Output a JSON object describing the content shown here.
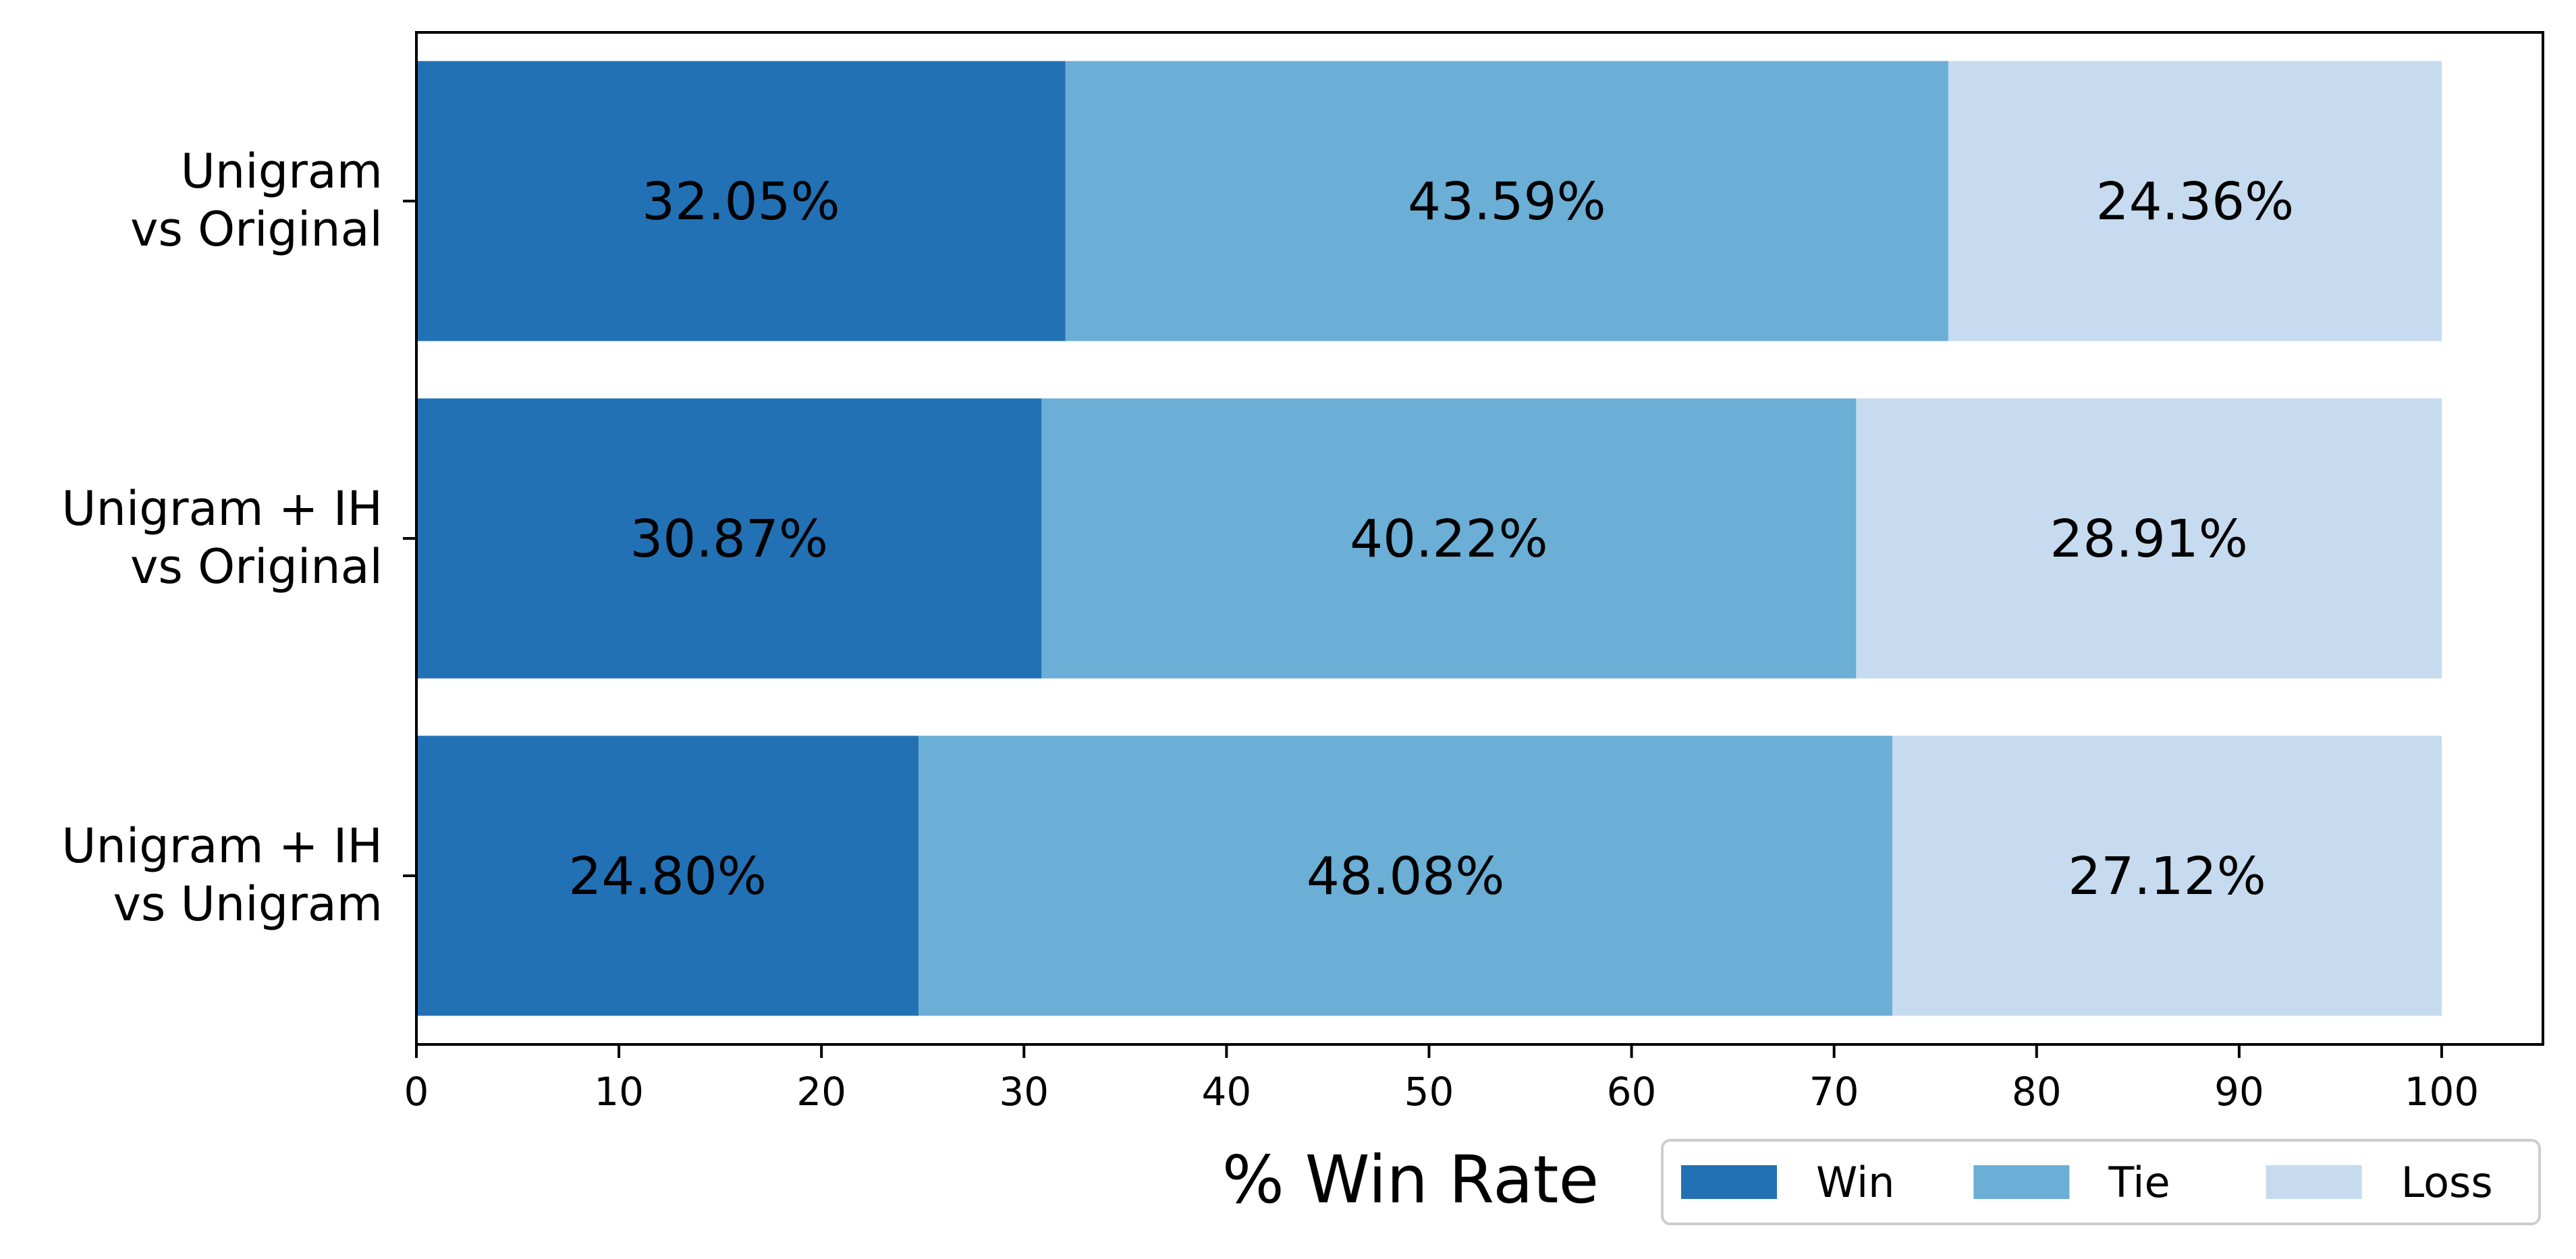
{
  "chart_data": {
    "type": "bar",
    "orientation": "horizontal",
    "stacked": true,
    "categories": [
      [
        "Unigram",
        "vs Original"
      ],
      [
        "Unigram + IH",
        "vs Original"
      ],
      [
        "Unigram + IH",
        "vs Unigram"
      ]
    ],
    "series": [
      {
        "name": "Win",
        "values": [
          32.05,
          30.87,
          24.8
        ],
        "labels": [
          "32.05%",
          "30.87%",
          "24.80%"
        ],
        "color": "#2271b5"
      },
      {
        "name": "Tie",
        "values": [
          43.59,
          40.22,
          48.08
        ],
        "labels": [
          "43.59%",
          "40.22%",
          "48.08%"
        ],
        "color": "#6baed6"
      },
      {
        "name": "Loss",
        "values": [
          24.36,
          28.91,
          27.12
        ],
        "labels": [
          "24.36%",
          "28.91%",
          "27.12%"
        ],
        "color": "#c6dbef"
      }
    ],
    "xlabel": "% Win Rate",
    "ylabel": "",
    "xlim": [
      0,
      105
    ],
    "xticks": [
      0,
      10,
      20,
      30,
      40,
      50,
      60,
      70,
      80,
      90,
      100
    ],
    "grid": false,
    "legend": {
      "placement": "bottom-right",
      "columns": 3
    }
  }
}
